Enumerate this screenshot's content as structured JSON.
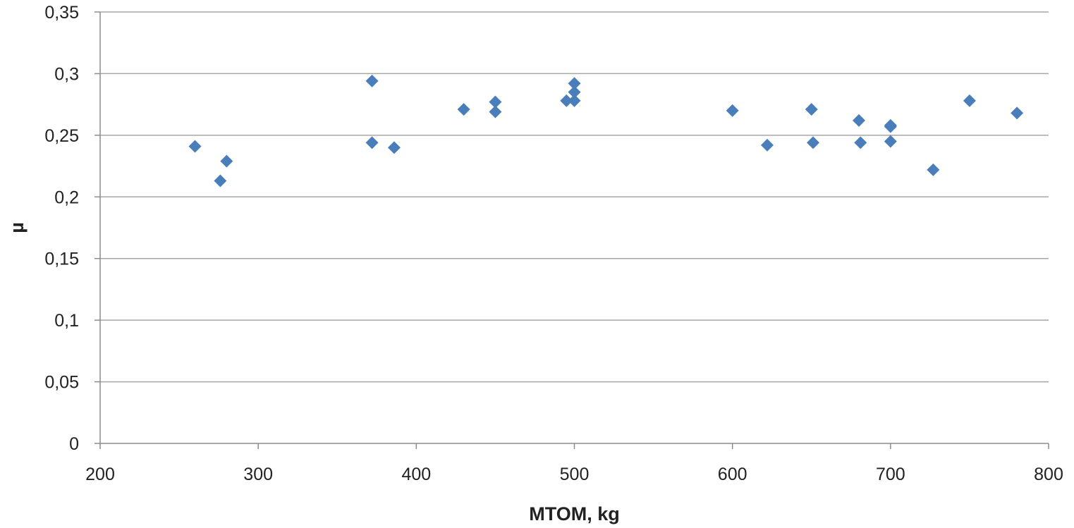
{
  "chart_data": {
    "type": "scatter",
    "title": "",
    "xlabel": "MTOM, kg",
    "ylabel": "µ",
    "xlim": [
      200,
      800
    ],
    "ylim": [
      0,
      0.35
    ],
    "x_ticks": [
      200,
      300,
      400,
      500,
      600,
      700,
      800
    ],
    "x_tick_labels": [
      "200",
      "300",
      "400",
      "500",
      "600",
      "700",
      "800"
    ],
    "y_ticks": [
      0,
      0.05,
      0.1,
      0.15,
      0.2,
      0.25,
      0.3,
      0.35
    ],
    "y_tick_labels": [
      "0",
      "0,05",
      "0,1",
      "0,15",
      "0,2",
      "0,25",
      "0,3",
      "0,35"
    ],
    "grid": "horizontal",
    "legend": "none",
    "marker": "diamond",
    "marker_color": "#4a7ebb",
    "points": [
      {
        "x": 260,
        "y": 0.241
      },
      {
        "x": 276,
        "y": 0.213
      },
      {
        "x": 280,
        "y": 0.229
      },
      {
        "x": 372,
        "y": 0.294
      },
      {
        "x": 372,
        "y": 0.244
      },
      {
        "x": 386,
        "y": 0.24
      },
      {
        "x": 430,
        "y": 0.271
      },
      {
        "x": 450,
        "y": 0.277
      },
      {
        "x": 450,
        "y": 0.269
      },
      {
        "x": 495,
        "y": 0.278
      },
      {
        "x": 500,
        "y": 0.292
      },
      {
        "x": 500,
        "y": 0.285
      },
      {
        "x": 500,
        "y": 0.278
      },
      {
        "x": 600,
        "y": 0.27
      },
      {
        "x": 622,
        "y": 0.242
      },
      {
        "x": 650,
        "y": 0.271
      },
      {
        "x": 651,
        "y": 0.244
      },
      {
        "x": 680,
        "y": 0.262
      },
      {
        "x": 681,
        "y": 0.244
      },
      {
        "x": 700,
        "y": 0.258
      },
      {
        "x": 700,
        "y": 0.257
      },
      {
        "x": 700,
        "y": 0.245
      },
      {
        "x": 727,
        "y": 0.222
      },
      {
        "x": 750,
        "y": 0.278
      },
      {
        "x": 780,
        "y": 0.268
      }
    ]
  }
}
